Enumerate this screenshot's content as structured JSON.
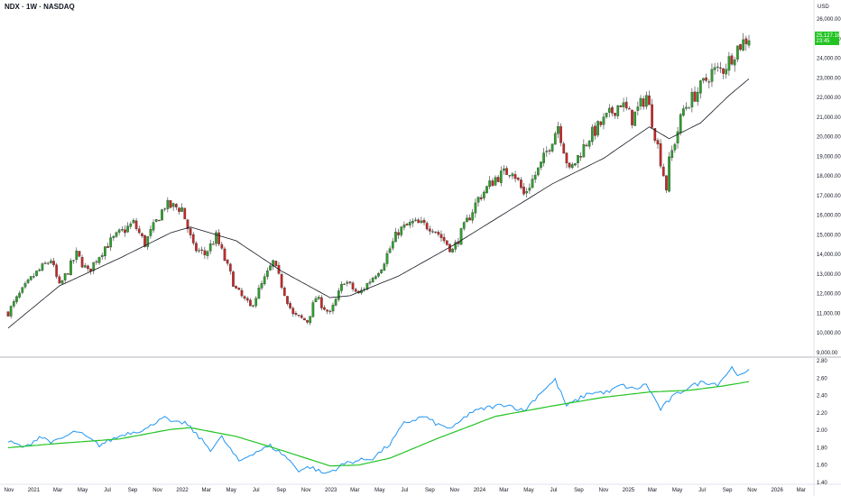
{
  "header": {
    "title": "NDX · 1W · NASDAQ",
    "currency": "USD"
  },
  "colors": {
    "up_candle": "#2ca02c",
    "down_candle": "#c62828",
    "moving_average": "#131722",
    "ratio_line": "#2196f3",
    "ratio_average": "#22c422",
    "last_price_badge": "#22c422",
    "axis_line": "#b2b5be"
  },
  "chart_data": [
    {
      "type": "candlestick",
      "title": "NDX · 1W · NASDAQ",
      "ylim": [
        9000,
        26000
      ],
      "y_ticks": [
        "26,000.00",
        "25,000.00",
        "24,000.00",
        "23,000.00",
        "22,000.00",
        "21,000.00",
        "20,000.00",
        "19,000.00",
        "18,000.00",
        "17,000.00",
        "16,000.00",
        "15,000.00",
        "14,000.00",
        "13,000.00",
        "12,000.00",
        "11,000.00",
        "10,000.00",
        "9,000.00"
      ],
      "last_price": "25,127.16",
      "last_price_sub": "23:45",
      "price_anchors": [
        [
          "2020-10-30",
          11050
        ],
        [
          "2020-11-27",
          11950
        ],
        [
          "2020-12-31",
          12900
        ],
        [
          "2021-02-12",
          13750
        ],
        [
          "2021-03-05",
          12350
        ],
        [
          "2021-04-16",
          14000
        ],
        [
          "2021-05-14",
          13100
        ],
        [
          "2021-06-25",
          14400
        ],
        [
          "2021-07-30",
          15050
        ],
        [
          "2021-09-03",
          15600
        ],
        [
          "2021-10-01",
          14550
        ],
        [
          "2021-11-19",
          16500
        ],
        [
          "2021-12-31",
          16350
        ],
        [
          "2022-01-28",
          14350
        ],
        [
          "2022-02-25",
          14000
        ],
        [
          "2022-03-25",
          14900
        ],
        [
          "2022-05-13",
          12200
        ],
        [
          "2022-06-17",
          11300
        ],
        [
          "2022-08-12",
          13600
        ],
        [
          "2022-09-30",
          10900
        ],
        [
          "2022-11-04",
          10600
        ],
        [
          "2022-11-25",
          11800
        ],
        [
          "2022-12-30",
          10950
        ],
        [
          "2023-02-03",
          12700
        ],
        [
          "2023-03-10",
          11950
        ],
        [
          "2023-05-05",
          13400
        ],
        [
          "2023-06-16",
          15200
        ],
        [
          "2023-07-21",
          15600
        ],
        [
          "2023-09-08",
          15400
        ],
        [
          "2023-10-27",
          14200
        ],
        [
          "2023-12-29",
          16850
        ],
        [
          "2024-02-09",
          17900
        ],
        [
          "2024-03-22",
          18350
        ],
        [
          "2024-04-19",
          17050
        ],
        [
          "2024-05-31",
          18550
        ],
        [
          "2024-07-12",
          20600
        ],
        [
          "2024-08-09",
          18200
        ],
        [
          "2024-09-27",
          20000
        ],
        [
          "2024-12-13",
          21750
        ],
        [
          "2025-01-10",
          20900
        ],
        [
          "2025-02-14",
          22100
        ],
        [
          "2025-03-14",
          19500
        ],
        [
          "2025-04-04",
          17400
        ],
        [
          "2025-04-11",
          18700
        ],
        [
          "2025-05-16",
          21400
        ],
        [
          "2025-06-27",
          22500
        ],
        [
          "2025-07-25",
          23300
        ],
        [
          "2025-08-22",
          23450
        ],
        [
          "2025-09-26",
          24550
        ],
        [
          "2025-10-24",
          25100
        ]
      ],
      "moving_average": {
        "name": "",
        "anchors": [
          [
            "2020-10-30",
            10250
          ],
          [
            "2021-03-05",
            12400
          ],
          [
            "2021-07-30",
            13800
          ],
          [
            "2021-12-03",
            15100
          ],
          [
            "2022-01-21",
            15400
          ],
          [
            "2022-05-13",
            14700
          ],
          [
            "2022-09-02",
            13150
          ],
          [
            "2022-12-30",
            11800
          ],
          [
            "2023-02-17",
            11900
          ],
          [
            "2023-06-16",
            12900
          ],
          [
            "2023-10-27",
            14450
          ],
          [
            "2024-02-09",
            15800
          ],
          [
            "2024-06-28",
            17600
          ],
          [
            "2024-11-01",
            18900
          ],
          [
            "2025-02-21",
            20500
          ],
          [
            "2025-04-11",
            19900
          ],
          [
            "2025-06-27",
            20700
          ],
          [
            "2025-09-05",
            22100
          ],
          [
            "2025-10-24",
            22950
          ]
        ]
      }
    },
    {
      "type": "line",
      "ylim": [
        1.4,
        2.8
      ],
      "y_ticks": [
        "2.80",
        "2.60",
        "2.40",
        "2.20",
        "2.00",
        "1.80",
        "1.60",
        "1.40"
      ],
      "x_ticks": [
        "Nov",
        "2021",
        "Mar",
        "May",
        "Jul",
        "Sep",
        "Nov",
        "2022",
        "Mar",
        "May",
        "Jul",
        "Sep",
        "Nov",
        "2023",
        "Mar",
        "May",
        "Jul",
        "Sep",
        "Nov",
        "2024",
        "Mar",
        "May",
        "Jul",
        "Sep",
        "Nov",
        "2025",
        "Mar",
        "May",
        "Jul",
        "Sep",
        "Nov",
        "2026",
        "Mar"
      ],
      "series": [
        {
          "name": "",
          "anchors": [
            [
              "2020-10-30",
              1.87
            ],
            [
              "2020-12-11",
              1.8
            ],
            [
              "2021-01-15",
              1.93
            ],
            [
              "2021-02-19",
              1.86
            ],
            [
              "2021-04-16",
              1.99
            ],
            [
              "2021-06-11",
              1.83
            ],
            [
              "2021-08-13",
              1.96
            ],
            [
              "2021-10-08",
              2.02
            ],
            [
              "2021-11-12",
              2.16
            ],
            [
              "2021-12-10",
              2.08
            ],
            [
              "2022-01-07",
              2.09
            ],
            [
              "2022-01-28",
              1.99
            ],
            [
              "2022-03-11",
              1.78
            ],
            [
              "2022-04-08",
              1.92
            ],
            [
              "2022-05-20",
              1.64
            ],
            [
              "2022-06-24",
              1.74
            ],
            [
              "2022-08-05",
              1.82
            ],
            [
              "2022-09-09",
              1.71
            ],
            [
              "2022-10-14",
              1.54
            ],
            [
              "2022-11-11",
              1.58
            ],
            [
              "2022-12-16",
              1.5
            ],
            [
              "2023-01-06",
              1.54
            ],
            [
              "2023-02-10",
              1.63
            ],
            [
              "2023-04-14",
              1.68
            ],
            [
              "2023-05-26",
              1.84
            ],
            [
              "2023-06-30",
              2.08
            ],
            [
              "2023-08-18",
              2.16
            ],
            [
              "2023-09-22",
              2.06
            ],
            [
              "2023-10-27",
              2.02
            ],
            [
              "2023-12-08",
              2.2
            ],
            [
              "2024-01-19",
              2.26
            ],
            [
              "2024-03-08",
              2.3
            ],
            [
              "2024-04-19",
              2.22
            ],
            [
              "2024-05-31",
              2.44
            ],
            [
              "2024-07-05",
              2.58
            ],
            [
              "2024-08-02",
              2.28
            ],
            [
              "2024-09-27",
              2.43
            ],
            [
              "2024-11-15",
              2.44
            ],
            [
              "2024-12-13",
              2.52
            ],
            [
              "2025-01-17",
              2.47
            ],
            [
              "2025-02-14",
              2.53
            ],
            [
              "2025-03-21",
              2.24
            ],
            [
              "2025-04-18",
              2.38
            ],
            [
              "2025-05-30",
              2.5
            ],
            [
              "2025-07-04",
              2.56
            ],
            [
              "2025-08-08",
              2.53
            ],
            [
              "2025-09-12",
              2.72
            ],
            [
              "2025-10-03",
              2.62
            ],
            [
              "2025-10-24",
              2.68
            ]
          ]
        },
        {
          "name": "",
          "anchors": [
            [
              "2020-10-30",
              1.8
            ],
            [
              "2021-03-05",
              1.85
            ],
            [
              "2021-07-30",
              1.9
            ],
            [
              "2021-12-03",
              2.01
            ],
            [
              "2022-01-21",
              2.03
            ],
            [
              "2022-05-13",
              1.93
            ],
            [
              "2022-09-02",
              1.77
            ],
            [
              "2022-12-30",
              1.59
            ],
            [
              "2023-03-10",
              1.6
            ],
            [
              "2023-05-26",
              1.68
            ],
            [
              "2023-09-22",
              1.91
            ],
            [
              "2024-02-09",
              2.16
            ],
            [
              "2024-06-28",
              2.28
            ],
            [
              "2024-11-01",
              2.38
            ],
            [
              "2025-02-21",
              2.44
            ],
            [
              "2025-05-30",
              2.46
            ],
            [
              "2025-08-22",
              2.51
            ],
            [
              "2025-10-24",
              2.56
            ]
          ]
        }
      ]
    }
  ]
}
